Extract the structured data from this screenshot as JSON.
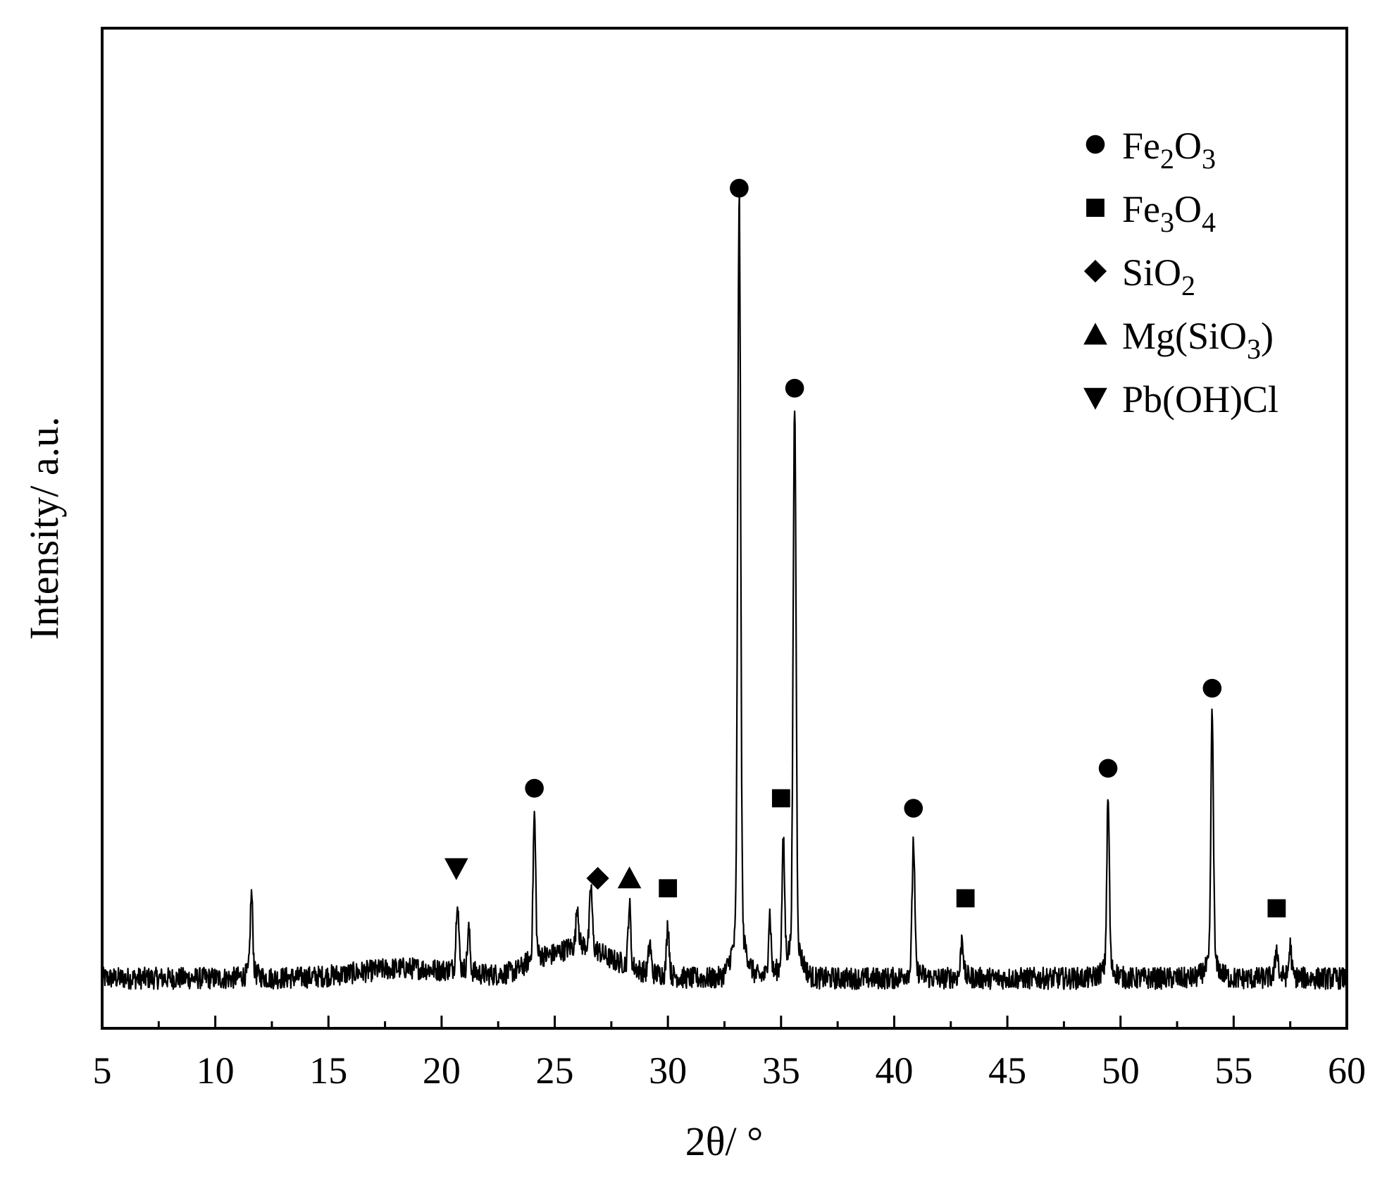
{
  "chart_data": {
    "type": "line",
    "xlabel": "2θ/ °",
    "ylabel": "Intensity/ a.u.",
    "xlim": [
      5,
      60
    ],
    "ylim": [
      0,
      100
    ],
    "x_ticks": [
      5,
      10,
      15,
      20,
      25,
      30,
      35,
      40,
      45,
      50,
      55,
      60
    ],
    "x_tick_labels": [
      "5",
      "10",
      "15",
      "20",
      "25",
      "30",
      "35",
      "40",
      "45",
      "50",
      "55",
      "60"
    ],
    "y_ticks_shown": false,
    "grid": false,
    "legend_position": "top-right",
    "series": [
      {
        "values_note": "XRD diffraction pattern (intensity in arbitrary units)",
        "baseline": 5,
        "peaks": [
          {
            "x": 11.6,
            "y": 13
          },
          {
            "x": 20.7,
            "y": 12
          },
          {
            "x": 21.2,
            "y": 9
          },
          {
            "x": 24.1,
            "y": 19
          },
          {
            "x": 26.0,
            "y": 9
          },
          {
            "x": 26.6,
            "y": 11
          },
          {
            "x": 28.3,
            "y": 11
          },
          {
            "x": 29.2,
            "y": 8
          },
          {
            "x": 30.0,
            "y": 10
          },
          {
            "x": 33.15,
            "y": 79
          },
          {
            "x": 34.5,
            "y": 11
          },
          {
            "x": 35.1,
            "y": 17
          },
          {
            "x": 35.6,
            "y": 59
          },
          {
            "x": 40.85,
            "y": 18
          },
          {
            "x": 43.0,
            "y": 9
          },
          {
            "x": 49.45,
            "y": 22
          },
          {
            "x": 54.05,
            "y": 30
          },
          {
            "x": 56.9,
            "y": 8
          },
          {
            "x": 57.5,
            "y": 8
          }
        ]
      }
    ],
    "legend": [
      {
        "marker": "circle",
        "base": "Fe",
        "sub1": "2",
        "mid": "O",
        "sub2": "3",
        "tail": ""
      },
      {
        "marker": "square",
        "base": "Fe",
        "sub1": "3",
        "mid": "O",
        "sub2": "4",
        "tail": ""
      },
      {
        "marker": "diamond",
        "base": "SiO",
        "sub1": "2",
        "mid": "",
        "sub2": "",
        "tail": ""
      },
      {
        "marker": "triangle-up",
        "base": "Mg(SiO",
        "sub1": "3",
        "mid": ")",
        "sub2": "",
        "tail": ""
      },
      {
        "marker": "triangle-down",
        "base": "Pb(OH)Cl",
        "sub1": "",
        "mid": "",
        "sub2": "",
        "tail": ""
      }
    ],
    "annotations": [
      {
        "marker": "circle",
        "x": 24.1,
        "y": 24
      },
      {
        "marker": "circle",
        "x": 33.15,
        "y": 84
      },
      {
        "marker": "circle",
        "x": 35.6,
        "y": 64
      },
      {
        "marker": "circle",
        "x": 40.85,
        "y": 22
      },
      {
        "marker": "circle",
        "x": 49.45,
        "y": 26
      },
      {
        "marker": "circle",
        "x": 54.05,
        "y": 34
      },
      {
        "marker": "square",
        "x": 30.0,
        "y": 14
      },
      {
        "marker": "square",
        "x": 35.0,
        "y": 23
      },
      {
        "marker": "square",
        "x": 43.15,
        "y": 13
      },
      {
        "marker": "square",
        "x": 56.9,
        "y": 12
      },
      {
        "marker": "diamond",
        "x": 26.9,
        "y": 15
      },
      {
        "marker": "triangle-up",
        "x": 28.3,
        "y": 15
      },
      {
        "marker": "triangle-down",
        "x": 20.65,
        "y": 16
      }
    ],
    "line_color": "#000000",
    "marker_color": "#000000"
  }
}
